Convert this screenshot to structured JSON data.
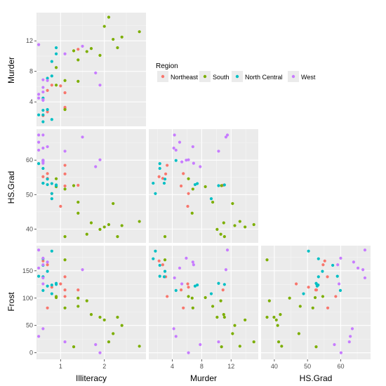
{
  "legend": {
    "title": "Region",
    "items": [
      {
        "label": "Northeast",
        "color": "#F8766D"
      },
      {
        "label": "South",
        "color": "#7CAE00"
      },
      {
        "label": "North Central",
        "color": "#00BFC4"
      },
      {
        "label": "West",
        "color": "#C77CFF"
      }
    ]
  },
  "chart_data": {
    "type": "scatter",
    "chart_kind": "scatterplot-matrix (lower triangle)",
    "grid": true,
    "legend_position": "right of top row",
    "columns": [
      "Illiteracy",
      "Murder",
      "HS.Grad"
    ],
    "rows": [
      "Murder",
      "HS.Grad",
      "Frost"
    ],
    "axis_ranges": {
      "Illiteracy": [
        0.45,
        2.95
      ],
      "Murder": [
        0.8,
        15.7
      ],
      "HS.Grad": [
        36.0,
        69.0
      ],
      "Frost": [
        -12,
        196
      ]
    },
    "ticks": {
      "Illiteracy": [
        1,
        2
      ],
      "Murder": [
        4,
        8,
        12
      ],
      "HS.Grad": [
        40,
        50,
        60
      ],
      "Frost": [
        0,
        50,
        100,
        150
      ]
    },
    "tick_labels": {
      "Illiteracy": [
        "1",
        "2"
      ],
      "Murder": [
        "4",
        "8",
        "12"
      ],
      "HS.Grad": [
        "40",
        "50",
        "60"
      ],
      "Frost": [
        "0",
        "50",
        "100",
        "150"
      ]
    },
    "variables_order": [
      "Illiteracy",
      "Murder",
      "HS.Grad",
      "Frost"
    ],
    "series": [
      {
        "region": "Northeast",
        "points": [
          [
            1.1,
            3.1,
            56.0,
            139
          ],
          [
            0.7,
            2.7,
            54.7,
            161
          ],
          [
            1.1,
            3.3,
            58.5,
            103
          ],
          [
            0.7,
            5.5,
            56.1,
            82
          ],
          [
            1.1,
            5.2,
            52.5,
            115
          ],
          [
            1.4,
            10.9,
            52.7,
            115
          ],
          [
            1.0,
            6.1,
            46.6,
            126
          ],
          [
            0.8,
            6.2,
            50.3,
            120
          ],
          [
            0.6,
            2.2,
            55.2,
            168
          ]
        ]
      },
      {
        "region": "South",
        "points": [
          [
            2.1,
            15.1,
            41.3,
            20
          ],
          [
            1.9,
            10.1,
            39.9,
            65
          ],
          [
            0.9,
            6.2,
            54.6,
            103
          ],
          [
            1.3,
            10.7,
            52.6,
            11
          ],
          [
            2.0,
            13.9,
            40.6,
            60
          ],
          [
            1.6,
            10.6,
            38.5,
            95
          ],
          [
            2.8,
            13.2,
            42.2,
            12
          ],
          [
            0.9,
            8.5,
            52.3,
            101
          ],
          [
            2.4,
            12.5,
            41.0,
            50
          ],
          [
            1.1,
            6.8,
            51.6,
            82
          ],
          [
            2.3,
            11.1,
            37.8,
            65
          ],
          [
            1.7,
            11.0,
            41.8,
            70
          ],
          [
            2.2,
            12.2,
            47.4,
            35
          ],
          [
            1.4,
            9.5,
            47.8,
            85
          ],
          [
            1.4,
            6.7,
            44.6,
            100
          ],
          [
            1.1,
            3.0,
            37.8,
            170
          ]
        ]
      },
      {
        "region": "North Central",
        "points": [
          [
            0.9,
            10.3,
            52.6,
            127
          ],
          [
            0.7,
            7.1,
            52.9,
            122
          ],
          [
            0.5,
            2.3,
            59.0,
            140
          ],
          [
            0.6,
            4.5,
            59.9,
            114
          ],
          [
            0.9,
            11.1,
            52.8,
            125
          ],
          [
            0.6,
            2.3,
            57.6,
            160
          ],
          [
            0.8,
            9.3,
            48.8,
            108
          ],
          [
            0.6,
            2.9,
            53.3,
            139
          ],
          [
            0.8,
            1.7,
            50.3,
            186
          ],
          [
            0.8,
            7.4,
            53.2,
            124
          ],
          [
            0.6,
            1.4,
            53.3,
            172
          ],
          [
            0.7,
            3.0,
            54.5,
            149
          ]
        ]
      },
      {
        "region": "West",
        "points": [
          [
            1.5,
            11.3,
            66.7,
            152
          ],
          [
            1.8,
            7.8,
            58.1,
            15
          ],
          [
            1.1,
            10.3,
            62.6,
            20
          ],
          [
            0.7,
            6.8,
            63.9,
            166
          ],
          [
            1.9,
            6.2,
            60.1,
            0
          ],
          [
            0.6,
            5.3,
            59.5,
            126
          ],
          [
            0.5,
            5.0,
            65.2,
            155
          ],
          [
            0.5,
            11.5,
            67.3,
            188
          ],
          [
            0.6,
            4.2,
            63.5,
            44
          ],
          [
            0.6,
            5.9,
            60.0,
            173
          ],
          [
            0.6,
            4.3,
            67.3,
            137
          ],
          [
            0.5,
            4.5,
            62.9,
            30
          ],
          [
            0.6,
            6.9,
            59.1,
            161
          ]
        ]
      }
    ]
  }
}
